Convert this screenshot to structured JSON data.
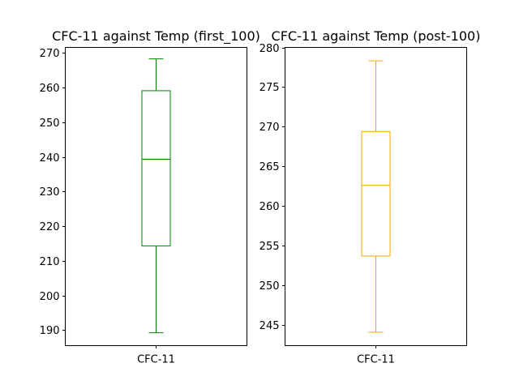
{
  "chart_data": [
    {
      "type": "box",
      "title": "CFC-11 against Temp (first_100)",
      "categories": [
        "CFC-11"
      ],
      "color": "#008000",
      "ylim": [
        185.5,
        271.6
      ],
      "yticks": [
        190,
        200,
        210,
        220,
        230,
        240,
        250,
        260,
        270
      ],
      "series": [
        {
          "whisker_low": 189.2,
          "q1": 214.3,
          "median": 239.3,
          "q3": 259.1,
          "whisker_high": 268.3
        }
      ]
    },
    {
      "type": "box",
      "title": "CFC-11 against Temp (post-100)",
      "categories": [
        "CFC-11"
      ],
      "color": "#FFA500",
      "ylim": [
        242.4,
        280
      ],
      "yticks": [
        245,
        250,
        255,
        260,
        265,
        270,
        275,
        280
      ],
      "series": [
        {
          "whisker_low": 244.1,
          "q1": 253.7,
          "median": 262.6,
          "q3": 269.4,
          "whisker_high": 278.3
        }
      ]
    }
  ]
}
